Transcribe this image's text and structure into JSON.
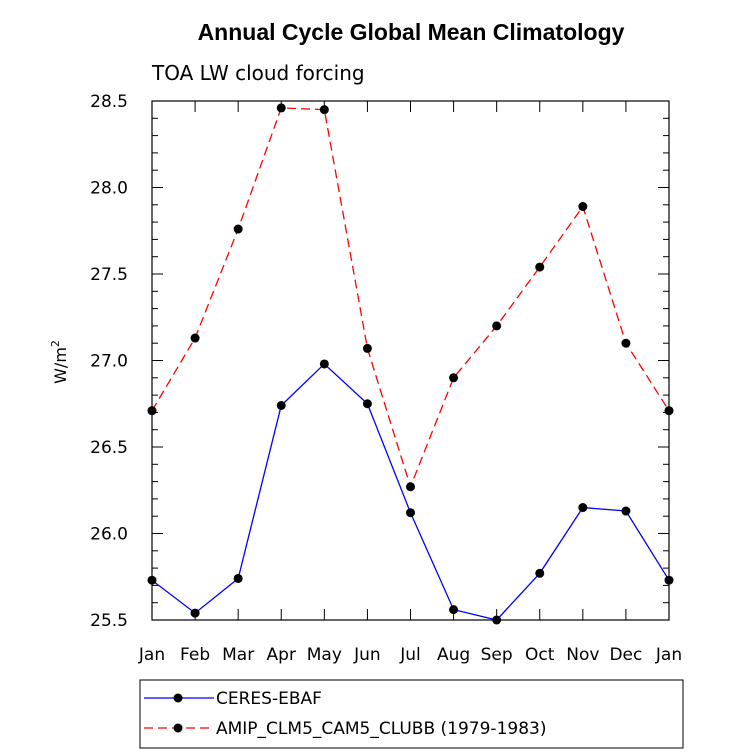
{
  "chart_data": {
    "type": "line",
    "title": "Annual Cycle Global Mean Climatology",
    "subtitle": "TOA LW cloud forcing",
    "ylabel_base": "W/m",
    "ylabel_sup": "2",
    "xlabel": "",
    "categories": [
      "Jan",
      "Feb",
      "Mar",
      "Apr",
      "May",
      "Jun",
      "Jul",
      "Aug",
      "Sep",
      "Oct",
      "Nov",
      "Dec",
      "Jan"
    ],
    "ylim": [
      25.5,
      28.5
    ],
    "yticks": [
      "25.5",
      "26.0",
      "26.5",
      "27.0",
      "27.5",
      "28.0",
      "28.5"
    ],
    "grid": false,
    "legend_position": "bottom",
    "series": [
      {
        "name": "CERES-EBAF",
        "color": "#0000ff",
        "dash": "solid",
        "marker": "circle",
        "values": [
          25.73,
          25.54,
          25.74,
          26.74,
          26.98,
          26.75,
          26.12,
          25.56,
          25.5,
          25.77,
          26.15,
          26.13,
          25.73
        ]
      },
      {
        "name": "AMIP_CLM5_CAM5_CLUBB (1979-1983)",
        "color": "#ff0000",
        "dash": "dashed",
        "marker": "circle",
        "values": [
          26.71,
          27.13,
          27.76,
          28.46,
          28.45,
          27.07,
          26.27,
          26.9,
          27.2,
          27.54,
          27.89,
          27.1,
          26.71
        ]
      }
    ]
  }
}
